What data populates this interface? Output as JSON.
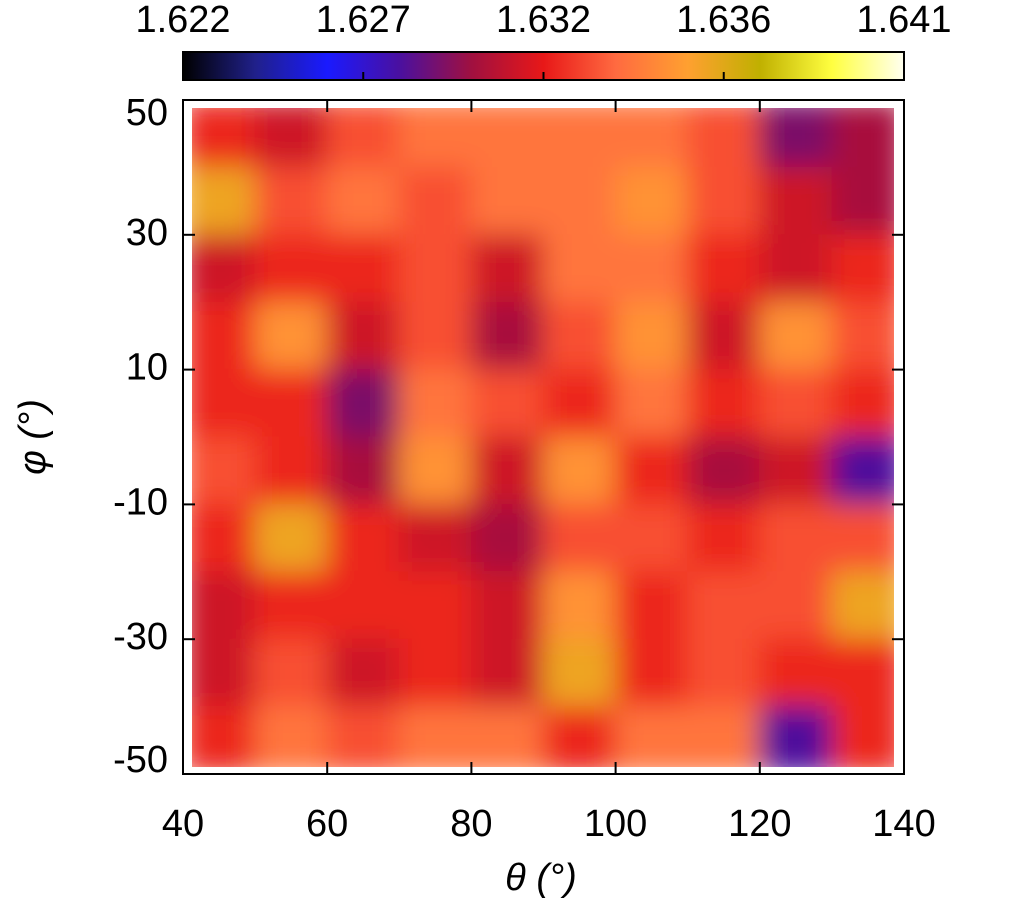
{
  "chart_data": {
    "type": "heatmap",
    "xlabel": "θ (°)",
    "ylabel": "φ (°)",
    "x": [
      45,
      55,
      65,
      75,
      85,
      95,
      105,
      115,
      125,
      135
    ],
    "y": [
      45,
      35,
      25,
      15,
      5,
      -5,
      -15,
      -25,
      -35,
      -45
    ],
    "z": [
      [
        1.632,
        1.631,
        1.633,
        1.634,
        1.634,
        1.634,
        1.634,
        1.633,
        1.629,
        1.63
      ],
      [
        1.636,
        1.633,
        1.634,
        1.633,
        1.634,
        1.634,
        1.635,
        1.633,
        1.631,
        1.63
      ],
      [
        1.631,
        1.632,
        1.632,
        1.633,
        1.631,
        1.634,
        1.634,
        1.632,
        1.631,
        1.632
      ],
      [
        1.632,
        1.635,
        1.631,
        1.633,
        1.63,
        1.633,
        1.635,
        1.631,
        1.635,
        1.633
      ],
      [
        1.632,
        1.632,
        1.629,
        1.634,
        1.633,
        1.632,
        1.634,
        1.632,
        1.633,
        1.632
      ],
      [
        1.633,
        1.632,
        1.63,
        1.635,
        1.631,
        1.635,
        1.632,
        1.63,
        1.631,
        1.628
      ],
      [
        1.632,
        1.636,
        1.632,
        1.631,
        1.63,
        1.633,
        1.633,
        1.632,
        1.633,
        1.633
      ],
      [
        1.631,
        1.632,
        1.632,
        1.632,
        1.631,
        1.635,
        1.632,
        1.633,
        1.633,
        1.636
      ],
      [
        1.631,
        1.633,
        1.631,
        1.632,
        1.631,
        1.636,
        1.632,
        1.633,
        1.632,
        1.632
      ],
      [
        1.632,
        1.634,
        1.633,
        1.634,
        1.634,
        1.632,
        1.634,
        1.634,
        1.628,
        1.632
      ]
    ],
    "xlim": [
      40,
      140
    ],
    "xticks": [
      40,
      60,
      80,
      100,
      120,
      140
    ],
    "ylim": [
      -50,
      50
    ],
    "yticks": [
      -50,
      -30,
      -10,
      10,
      30,
      50
    ],
    "colorbar": {
      "lim": [
        1.6222,
        1.6412
      ],
      "ticks": [
        {
          "value": 1.6222,
          "label": "1.622"
        },
        {
          "value": 1.62695,
          "label": "1.627"
        },
        {
          "value": 1.6317,
          "label": "1.632"
        },
        {
          "value": 1.63645,
          "label": "1.636"
        },
        {
          "value": 1.6412,
          "label": "1.641"
        }
      ]
    },
    "colorscale": [
      "#000000",
      "#20208a",
      "#1a1aff",
      "#4a10a0",
      "#a01040",
      "#e81818",
      "#ff6a40",
      "#ffa030",
      "#c0b000",
      "#ffff40",
      "#fffff0"
    ]
  }
}
